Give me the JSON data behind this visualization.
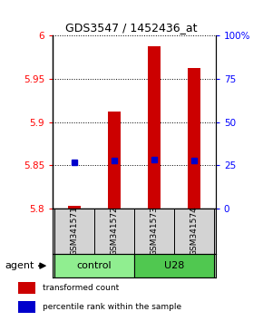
{
  "title": "GDS3547 / 1452436_at",
  "samples": [
    "GSM341571",
    "GSM341572",
    "GSM341573",
    "GSM341574"
  ],
  "bar_bottoms": [
    5.8,
    5.8,
    5.8,
    5.8
  ],
  "bar_tops": [
    5.803,
    5.912,
    5.987,
    5.962
  ],
  "percentile_values": [
    5.853,
    5.856,
    5.857,
    5.856
  ],
  "ylim_left": [
    5.8,
    6.0
  ],
  "ylim_right": [
    0,
    100
  ],
  "yticks_left": [
    5.8,
    5.85,
    5.9,
    5.95,
    6.0
  ],
  "yticks_right": [
    0,
    25,
    50,
    75,
    100
  ],
  "ytick_labels_left": [
    "5.8",
    "5.85",
    "5.9",
    "5.95",
    "6"
  ],
  "ytick_labels_right": [
    "0",
    "25",
    "50",
    "75",
    "100%"
  ],
  "groups": [
    {
      "label": "control",
      "samples": [
        0,
        1
      ],
      "color": "#90EE90"
    },
    {
      "label": "U28",
      "samples": [
        2,
        3
      ],
      "color": "#50C850"
    }
  ],
  "bar_color": "#CC0000",
  "percentile_color": "#0000CC",
  "agent_label": "agent",
  "bg_color": "#FFFFFF",
  "legend_items": [
    {
      "label": "transformed count",
      "color": "#CC0000"
    },
    {
      "label": "percentile rank within the sample",
      "color": "#0000CC"
    }
  ]
}
